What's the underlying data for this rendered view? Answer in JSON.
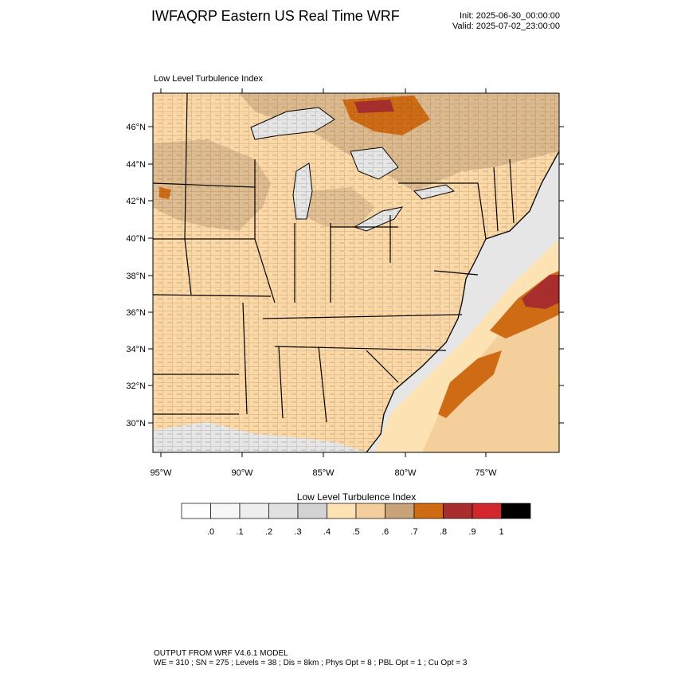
{
  "header": {
    "title": "IWFAQRP Eastern US Real Time WRF",
    "init": "Init: 2025-06-30_00:00:00",
    "valid": "Valid: 2025-07-02_23:00:00"
  },
  "map": {
    "subtitle": "Low Level Turbulence Index",
    "lat_ticks": [
      "46°N",
      "44°N",
      "42°N",
      "40°N",
      "38°N",
      "36°N",
      "34°N",
      "32°N",
      "30°N"
    ],
    "lon_ticks": [
      "95°W",
      "90°W",
      "85°W",
      "80°W",
      "75°W"
    ],
    "colors": {
      "land_base": "#fbd8a6",
      "tan": "#d9b78c",
      "brown": "#c99c6f",
      "orange": "#cf6b14",
      "red": "#a82e2e",
      "light_orange": "#fde2b4",
      "grey_light": "#e6e6e6",
      "grey_mid": "#d6d6d6",
      "boundary": "#000000"
    }
  },
  "colorbar": {
    "title": "Low Level Turbulence Index",
    "labels": [
      ".0",
      ".1",
      ".2",
      ".3",
      ".4",
      ".5",
      ".6",
      ".7",
      ".8",
      ".9",
      "1"
    ],
    "colors": [
      "#ffffff",
      "#f7f7f7",
      "#eeeeee",
      "#e1e1e1",
      "#d3d3d3",
      "#fde2b4",
      "#f4cf9c",
      "#c9a27a",
      "#cf6b14",
      "#a82e2e",
      "#d2272c",
      "#000000"
    ]
  },
  "footer": {
    "line1": "OUTPUT FROM WRF V4.6.1 MODEL",
    "line2": "WE = 310 ; SN = 275 ; Levels = 38 ; Dis = 8km ; Phys Opt = 8 ; PBL Opt = 1 ; Cu Opt = 3"
  }
}
